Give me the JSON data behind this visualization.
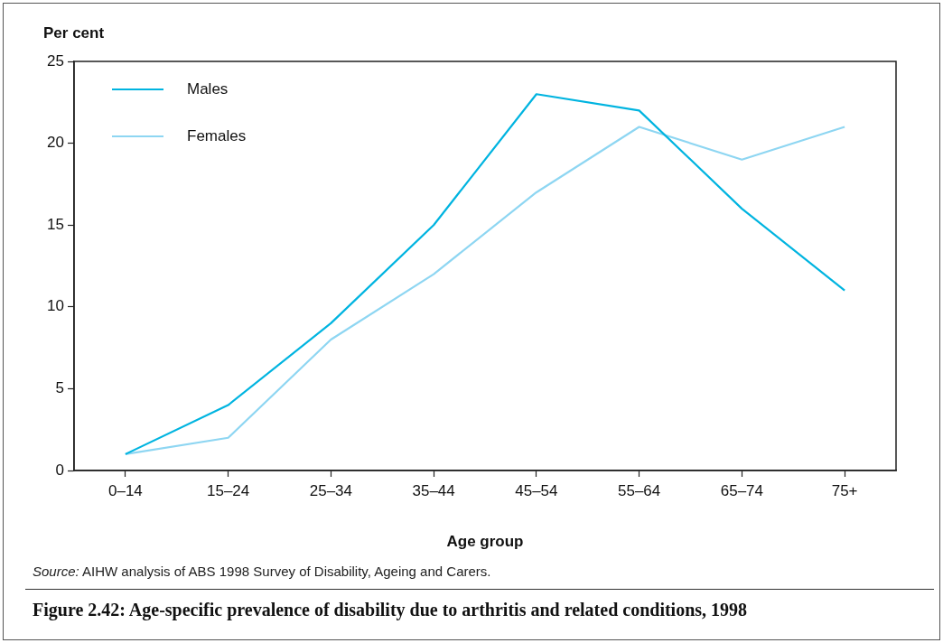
{
  "chart_data": {
    "type": "line",
    "title": "Figure 2.42: Age-specific prevalence of disability due to arthritis and related conditions, 1998",
    "xlabel": "Age group",
    "ylabel": "Per cent",
    "annotations": [
      "Source: AIHW analysis of ABS 1998 Survey of Disability, Ageing and Carers."
    ],
    "categories": [
      "0–14",
      "15–24",
      "25–34",
      "35–44",
      "45–54",
      "55–64",
      "65–74",
      "75+"
    ],
    "series": [
      {
        "name": "Males",
        "color": "#00b4e0",
        "values": [
          1,
          4,
          9,
          15,
          23,
          22,
          16,
          11
        ]
      },
      {
        "name": "Females",
        "color": "#8ed6f2",
        "values": [
          1,
          2,
          8,
          12,
          17,
          21,
          19,
          21
        ]
      }
    ],
    "ylim": [
      0,
      25
    ],
    "yticks": [
      0,
      5,
      10,
      15,
      20,
      25
    ],
    "grid": false,
    "legend": "top left",
    "marker": "none",
    "line_style": "solid"
  }
}
